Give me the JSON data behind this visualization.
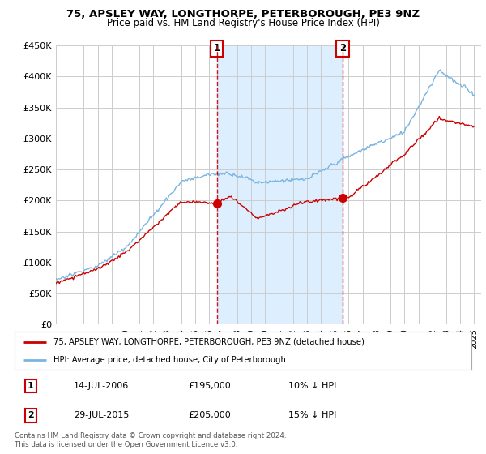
{
  "title_line1": "75, APSLEY WAY, LONGTHORPE, PETERBOROUGH, PE3 9NZ",
  "title_line2": "Price paid vs. HM Land Registry's House Price Index (HPI)",
  "ylim": [
    0,
    450000
  ],
  "yticks": [
    0,
    50000,
    100000,
    150000,
    200000,
    250000,
    300000,
    350000,
    400000,
    450000
  ],
  "ytick_labels": [
    "£0",
    "£50K",
    "£100K",
    "£150K",
    "£200K",
    "£250K",
    "£300K",
    "£350K",
    "£400K",
    "£450K"
  ],
  "xlim_start": 1995.0,
  "xlim_end": 2025.5,
  "sale1_x": 2006.54,
  "sale1_y": 195000,
  "sale1_label": "1",
  "sale2_x": 2015.57,
  "sale2_y": 205000,
  "sale2_label": "2",
  "hpi_color": "#7ab4e0",
  "price_color": "#cc0000",
  "marker_color": "#cc0000",
  "shade_color": "#ddeeff",
  "legend_line1": "75, APSLEY WAY, LONGTHORPE, PETERBOROUGH, PE3 9NZ (detached house)",
  "legend_line2": "HPI: Average price, detached house, City of Peterborough",
  "table_row1": [
    "1",
    "14-JUL-2006",
    "£195,000",
    "10% ↓ HPI"
  ],
  "table_row2": [
    "2",
    "29-JUL-2015",
    "£205,000",
    "15% ↓ HPI"
  ],
  "footnote": "Contains HM Land Registry data © Crown copyright and database right 2024.\nThis data is licensed under the Open Government Licence v3.0.",
  "background_color": "#ffffff",
  "grid_color": "#cccccc"
}
